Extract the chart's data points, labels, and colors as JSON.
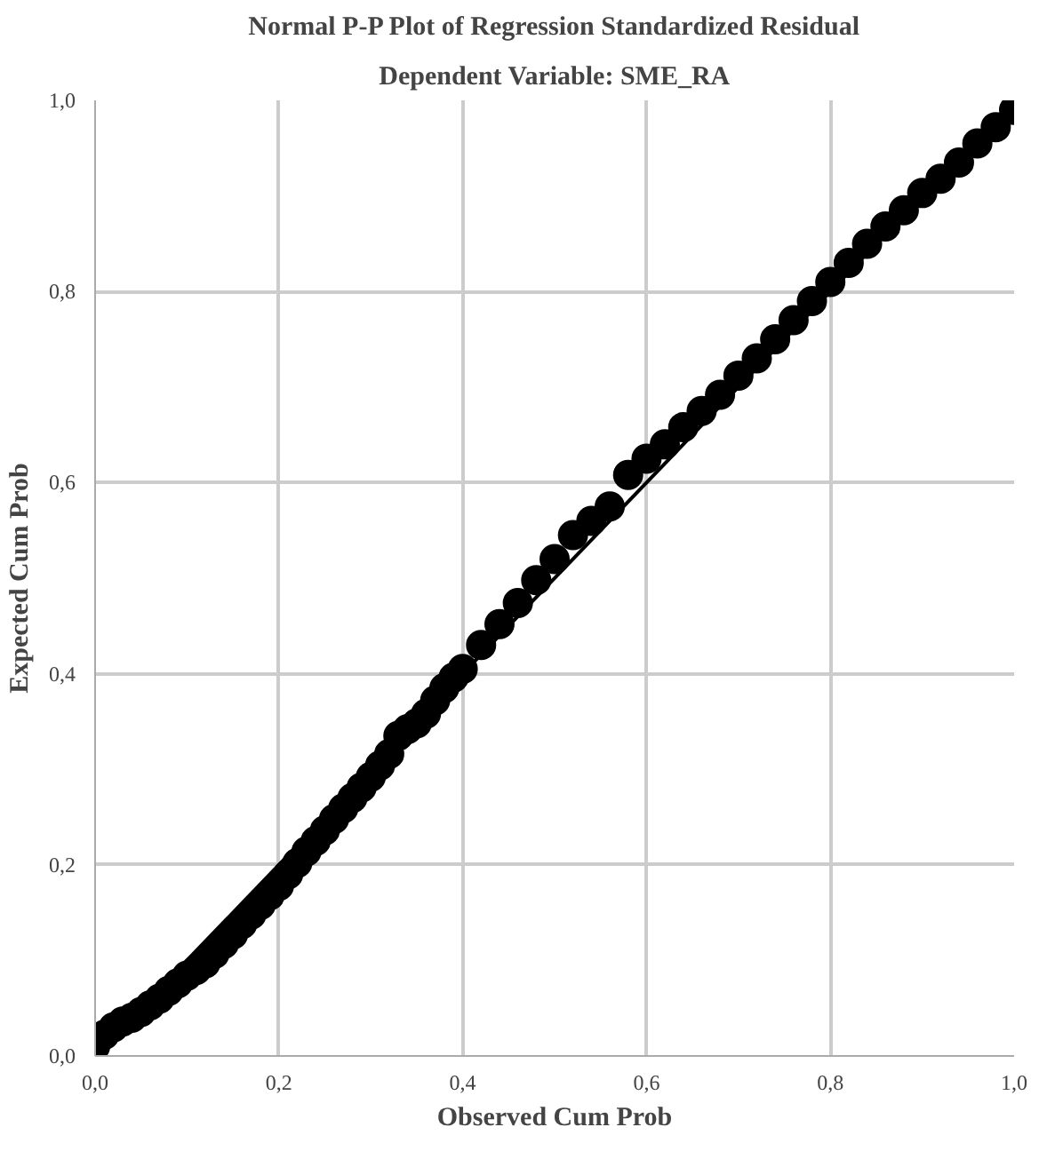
{
  "chart_data": {
    "type": "scatter",
    "title": "Normal P-P Plot of Regression Standardized Residual",
    "subtitle": "Dependent Variable: SME_RA",
    "xlabel": "Observed Cum Prob",
    "ylabel": "Expected Cum Prob",
    "xlim": [
      0,
      1
    ],
    "ylim": [
      0,
      1
    ],
    "xticks": [
      {
        "value": 0,
        "label": "0,0"
      },
      {
        "value": 0.2,
        "label": "0,2"
      },
      {
        "value": 0.4,
        "label": "0,4"
      },
      {
        "value": 0.6,
        "label": "0,6"
      },
      {
        "value": 0.8,
        "label": "0,8"
      },
      {
        "value": 1,
        "label": "1,0"
      }
    ],
    "yticks": [
      {
        "value": 0,
        "label": "0,0"
      },
      {
        "value": 0.2,
        "label": "0,2"
      },
      {
        "value": 0.4,
        "label": "0,4"
      },
      {
        "value": 0.6,
        "label": "0,6"
      },
      {
        "value": 0.8,
        "label": "0,8"
      },
      {
        "value": 1,
        "label": "1,0"
      }
    ],
    "grid": true,
    "series": [
      {
        "type": "line",
        "color": "#000000",
        "x": [
          0,
          1
        ],
        "values": [
          0,
          1
        ]
      },
      {
        "type": "scatter",
        "color": "#000000",
        "marker": "circle",
        "x": [
          0,
          0.01,
          0.02,
          0.03,
          0.04,
          0.05,
          0.06,
          0.07,
          0.08,
          0.09,
          0.1,
          0.11,
          0.12,
          0.13,
          0.14,
          0.15,
          0.16,
          0.17,
          0.18,
          0.19,
          0.2,
          0.21,
          0.22,
          0.23,
          0.24,
          0.25,
          0.26,
          0.27,
          0.28,
          0.29,
          0.3,
          0.31,
          0.32,
          0.33,
          0.34,
          0.35,
          0.36,
          0.37,
          0.38,
          0.39,
          0.4,
          0.42,
          0.44,
          0.46,
          0.48,
          0.5,
          0.52,
          0.54,
          0.56,
          0.58,
          0.6,
          0.62,
          0.64,
          0.66,
          0.68,
          0.7,
          0.72,
          0.74,
          0.76,
          0.78,
          0.8,
          0.82,
          0.84,
          0.86,
          0.88,
          0.9,
          0.92,
          0.94,
          0.96,
          0.98,
          1
        ],
        "values": [
          0.01,
          0.022,
          0.03,
          0.036,
          0.04,
          0.046,
          0.053,
          0.06,
          0.068,
          0.076,
          0.084,
          0.09,
          0.097,
          0.107,
          0.117,
          0.127,
          0.138,
          0.148,
          0.158,
          0.168,
          0.178,
          0.19,
          0.202,
          0.214,
          0.225,
          0.236,
          0.248,
          0.259,
          0.27,
          0.281,
          0.292,
          0.304,
          0.316,
          0.335,
          0.342,
          0.348,
          0.358,
          0.372,
          0.385,
          0.396,
          0.405,
          0.43,
          0.452,
          0.474,
          0.498,
          0.52,
          0.545,
          0.56,
          0.575,
          0.608,
          0.625,
          0.64,
          0.658,
          0.675,
          0.692,
          0.712,
          0.73,
          0.75,
          0.77,
          0.79,
          0.81,
          0.83,
          0.85,
          0.868,
          0.885,
          0.903,
          0.918,
          0.935,
          0.955,
          0.972,
          0.99
        ]
      }
    ]
  }
}
